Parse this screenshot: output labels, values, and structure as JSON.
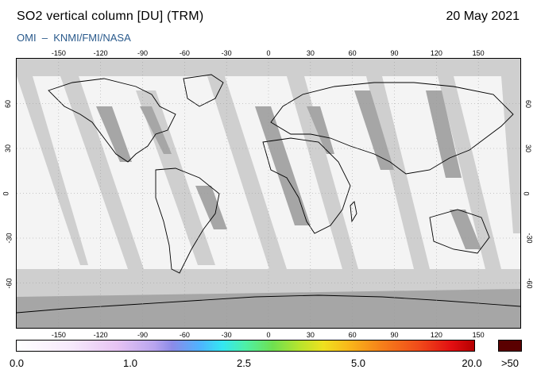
{
  "header": {
    "title": "SO2 vertical column [DU] (TRM)",
    "date": "20 May 2021",
    "credit": "OMI  –  KNMI/FMI/NASA"
  },
  "map": {
    "lon_ticks": [
      "-150",
      "-120",
      "-90",
      "-60",
      "-30",
      "0",
      "30",
      "60",
      "90",
      "120",
      "150"
    ],
    "lat_ticks": [
      "60",
      "30",
      "0",
      "-30",
      "-60"
    ],
    "colors": {
      "no_data": "#f4f4f4",
      "swath_gap": "#cfcfcf",
      "land_gap": "#a6a6a6",
      "coast": "#000000"
    }
  },
  "colorbar": {
    "labels": [
      "0.0",
      "1.0",
      "2.5",
      "5.0",
      "20.0"
    ],
    "over_label": ">50",
    "over_color": "#5a0000"
  }
}
